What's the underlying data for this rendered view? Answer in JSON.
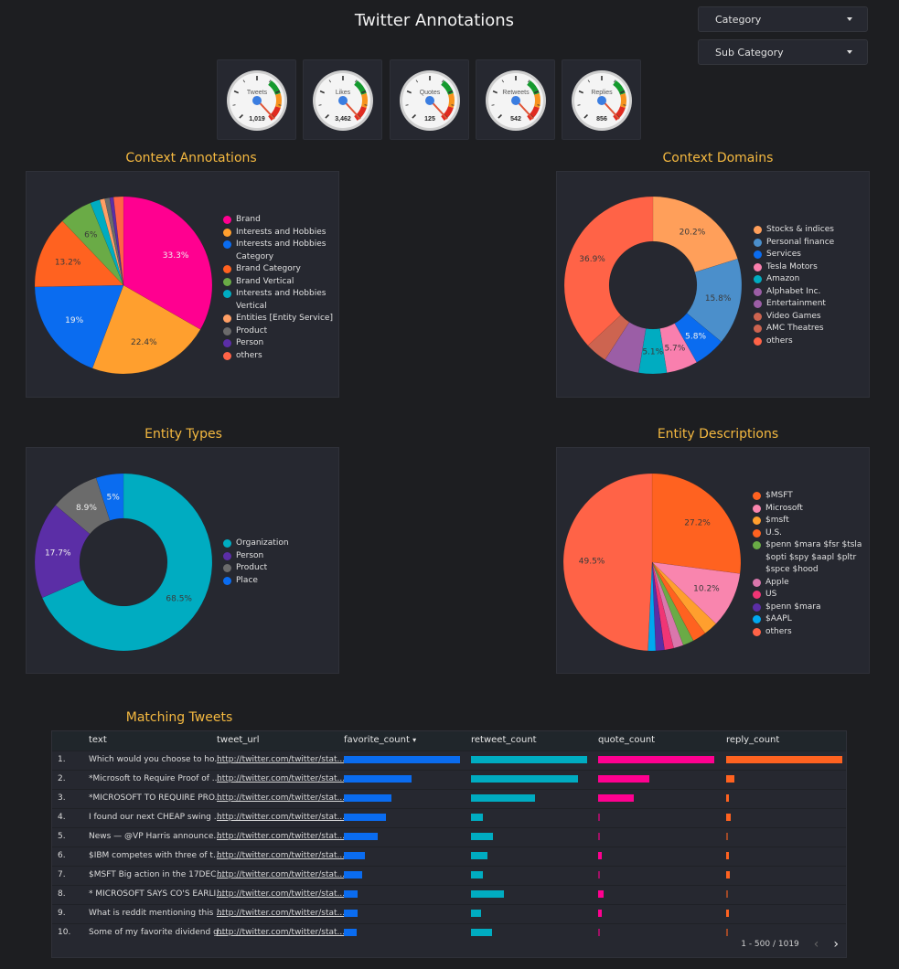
{
  "header": {
    "title": "Twitter Annotations"
  },
  "filters": [
    {
      "label": "Category"
    },
    {
      "label": "Sub Category"
    }
  ],
  "gauges": [
    {
      "label": "Tweets",
      "value": "1,019"
    },
    {
      "label": "Likes",
      "value": "3,462"
    },
    {
      "label": "Quotes",
      "value": "125"
    },
    {
      "label": "Retweets",
      "value": "542"
    },
    {
      "label": "Replies",
      "value": "856"
    }
  ],
  "chart_data": [
    {
      "id": "context_annotations",
      "type": "pie",
      "title": "Context Annotations",
      "donut": false,
      "categories": [
        "Brand",
        "Interests and Hobbies",
        "Interests and Hobbies Category",
        "Brand Category",
        "Brand Vertical",
        "Interests and Hobbies Vertical",
        "Entities [Entity Service]",
        "Product",
        "Person",
        "others"
      ],
      "values": [
        33.3,
        22.4,
        19,
        13.2,
        6,
        1.8,
        0.9,
        0.9,
        0.7,
        1.8
      ],
      "labels": [
        "33.3%",
        "22.4%",
        "19%",
        "13.2%",
        "6%",
        "",
        "",
        "",
        "",
        ""
      ],
      "colors": [
        "#ff0090",
        "#ff9f2e",
        "#0a6cf0",
        "#ff6220",
        "#6aab46",
        "#00acc1",
        "#ff9f65",
        "#6b6b6b",
        "#5b2ea6",
        "#ff6347"
      ],
      "legend": "right"
    },
    {
      "id": "context_domains",
      "type": "pie",
      "title": "Context Domains",
      "donut": true,
      "categories": [
        "Stocks & indices",
        "Personal finance",
        "Services",
        "Tesla Motors",
        "Amazon",
        "Alphabet Inc.",
        "Entertainment",
        "Video Games",
        "AMC Theatres",
        "others"
      ],
      "values": [
        20.2,
        15.8,
        5.8,
        5.7,
        5.1,
        6.5,
        0,
        0,
        4,
        36.9
      ],
      "labels": [
        "20.2%",
        "15.8%",
        "5.8%",
        "5.7%",
        "5.1%",
        "",
        "",
        "",
        "",
        "36.9%"
      ],
      "colors": [
        "#ff9f5a",
        "#4b8fcb",
        "#0a6cf0",
        "#f97fae",
        "#00acc1",
        "#9b5ea6",
        "#9b5ea6",
        "#cd6450",
        "#cd6450",
        "#ff6347"
      ],
      "legend": "right"
    },
    {
      "id": "entity_types",
      "type": "pie",
      "title": "Entity Types",
      "donut": true,
      "categories": [
        "Organization",
        "Person",
        "Product",
        "Place"
      ],
      "values": [
        68.5,
        17.7,
        8.9,
        5
      ],
      "labels": [
        "68.5%",
        "17.7%",
        "8.9%",
        "5%"
      ],
      "colors": [
        "#00acc1",
        "#5b2ea6",
        "#6b6b6b",
        "#0a6cf0"
      ],
      "legend": "right"
    },
    {
      "id": "entity_descriptions",
      "type": "pie",
      "title": "Entity Descriptions",
      "donut": false,
      "categories": [
        "$MSFT",
        "Microsoft",
        "$msft",
        "U.S.",
        "$penn $mara $fsr $tsla $opti $spy $aapl $pltr $spce $hood",
        "Apple",
        "US",
        "$penn $mara",
        "$AAPL",
        "others"
      ],
      "values": [
        27.2,
        10.2,
        2.6,
        2.5,
        2,
        1.8,
        1.7,
        1.6,
        1.4,
        49.5
      ],
      "labels": [
        "27.2%",
        "10.2%",
        "",
        "",
        "",
        "",
        "",
        "",
        "",
        "49.5%"
      ],
      "colors": [
        "#ff6220",
        "#f985ae",
        "#ff9f2e",
        "#ff6220",
        "#6aab46",
        "#d977ac",
        "#f03575",
        "#5b2ea6",
        "#00a8f0",
        "#ff6347"
      ],
      "legend": "right"
    },
    {
      "id": "matching_tweets",
      "type": "table",
      "title": "Matching Tweets",
      "columns": [
        "text",
        "tweet_url",
        "favorite_count",
        "retweet_count",
        "quote_count",
        "reply_count"
      ],
      "sort_indicator": "▾",
      "rows": [
        {
          "n": "1.",
          "text": "Which would you choose to ho...",
          "url": "http://twitter.com/twitter/stat...",
          "fav": 1.0,
          "rt": 1.0,
          "quote": 1.0,
          "reply": 1.0
        },
        {
          "n": "2.",
          "text": "*Microsoft to Require Proof of ...",
          "url": "http://twitter.com/twitter/stat...",
          "fav": 0.58,
          "rt": 0.92,
          "quote": 0.44,
          "reply": 0.07
        },
        {
          "n": "3.",
          "text": "*MICROSOFT TO REQUIRE PRO...",
          "url": "http://twitter.com/twitter/stat...",
          "fav": 0.41,
          "rt": 0.55,
          "quote": 0.31,
          "reply": 0.02
        },
        {
          "n": "4.",
          "text": "I found our next CHEAP swing ...",
          "url": "http://twitter.com/twitter/stat...",
          "fav": 0.36,
          "rt": 0.1,
          "quote": 0.01,
          "reply": 0.04
        },
        {
          "n": "5.",
          "text": "News — @VP Harris announce...",
          "url": "http://twitter.com/twitter/stat...",
          "fav": 0.29,
          "rt": 0.19,
          "quote": 0.01,
          "reply": 0.01
        },
        {
          "n": "6.",
          "text": "$IBM competes with three of t...",
          "url": "http://twitter.com/twitter/stat...",
          "fav": 0.18,
          "rt": 0.14,
          "quote": 0.03,
          "reply": 0.02
        },
        {
          "n": "7.",
          "text": "$MSFT Big action in the 17DEC...",
          "url": "http://twitter.com/twitter/stat...",
          "fav": 0.16,
          "rt": 0.1,
          "quote": 0.01,
          "reply": 0.03
        },
        {
          "n": "8.",
          "text": "* MICROSOFT SAYS CO'S EARLI...",
          "url": "http://twitter.com/twitter/stat...",
          "fav": 0.12,
          "rt": 0.28,
          "quote": 0.05,
          "reply": 0.01
        },
        {
          "n": "9.",
          "text": "What is reddit mentioning this ...",
          "url": "http://twitter.com/twitter/stat...",
          "fav": 0.12,
          "rt": 0.09,
          "quote": 0.03,
          "reply": 0.02
        },
        {
          "n": "10.",
          "text": "Some of my favorite dividend g...",
          "url": "http://twitter.com/twitter/stat...",
          "fav": 0.11,
          "rt": 0.18,
          "quote": 0.01,
          "reply": 0.01
        }
      ],
      "bar_colors": {
        "fav": "#0a6cf0",
        "rt": "#00acc1",
        "quote": "#ff0090",
        "reply": "#ff6220"
      },
      "pagination": "1 - 500 / 1019"
    }
  ],
  "pager": {
    "prev": "‹",
    "next": "›"
  }
}
